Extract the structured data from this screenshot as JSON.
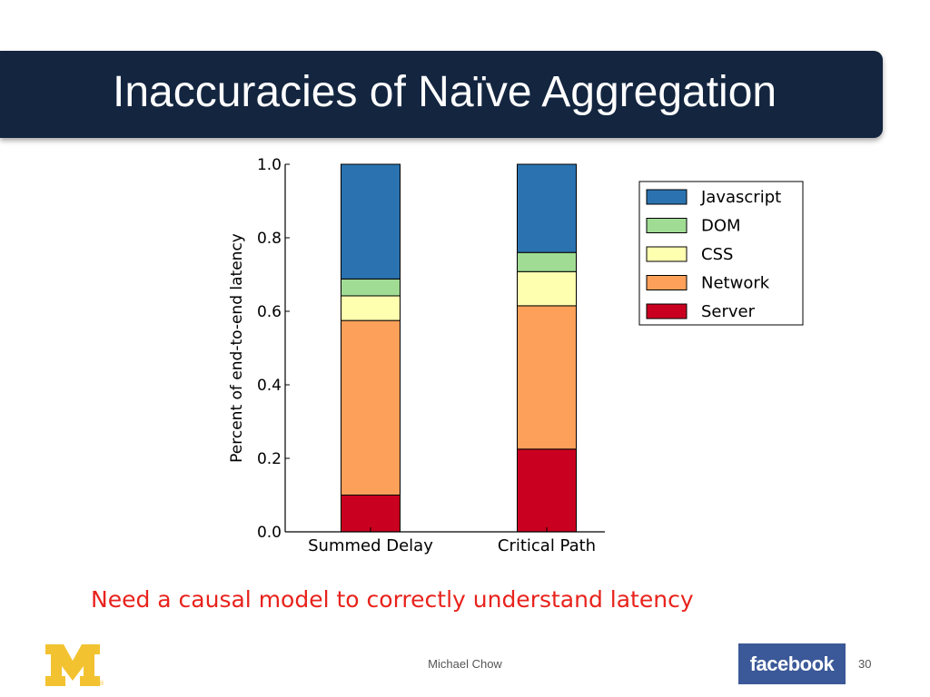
{
  "slide": {
    "title": "Inaccuracies of Naïve Aggregation",
    "subtitle": "Need a causal model to correctly understand latency",
    "footer": {
      "author": "Michael Chow",
      "page_number": "30",
      "facebook_logo_text": "facebook"
    },
    "logo": "block-m-logo"
  },
  "chart_data": {
    "type": "bar",
    "stacked": true,
    "categories": [
      "Summed Delay",
      "Critical Path"
    ],
    "series": [
      {
        "name": "Server",
        "color": "#ca0020",
        "values": [
          0.1,
          0.225
        ]
      },
      {
        "name": "Network",
        "color": "#fca05a",
        "values": [
          0.475,
          0.39
        ]
      },
      {
        "name": "CSS",
        "color": "#ffffb0",
        "values": [
          0.067,
          0.093
        ]
      },
      {
        "name": "DOM",
        "color": "#a0dc94",
        "values": [
          0.046,
          0.052
        ]
      },
      {
        "name": "Javascript",
        "color": "#2b73b0",
        "values": [
          0.312,
          0.24
        ]
      }
    ],
    "legend_order": [
      "Javascript",
      "DOM",
      "CSS",
      "Network",
      "Server"
    ],
    "ylabel": "Percent of end-to-end latency",
    "xlabel": "",
    "ylim": [
      0,
      1.0
    ],
    "yticks": [
      "0.0",
      "0.2",
      "0.4",
      "0.6",
      "0.8",
      "1.0"
    ],
    "legend_position": "upper-right",
    "grid": false
  }
}
